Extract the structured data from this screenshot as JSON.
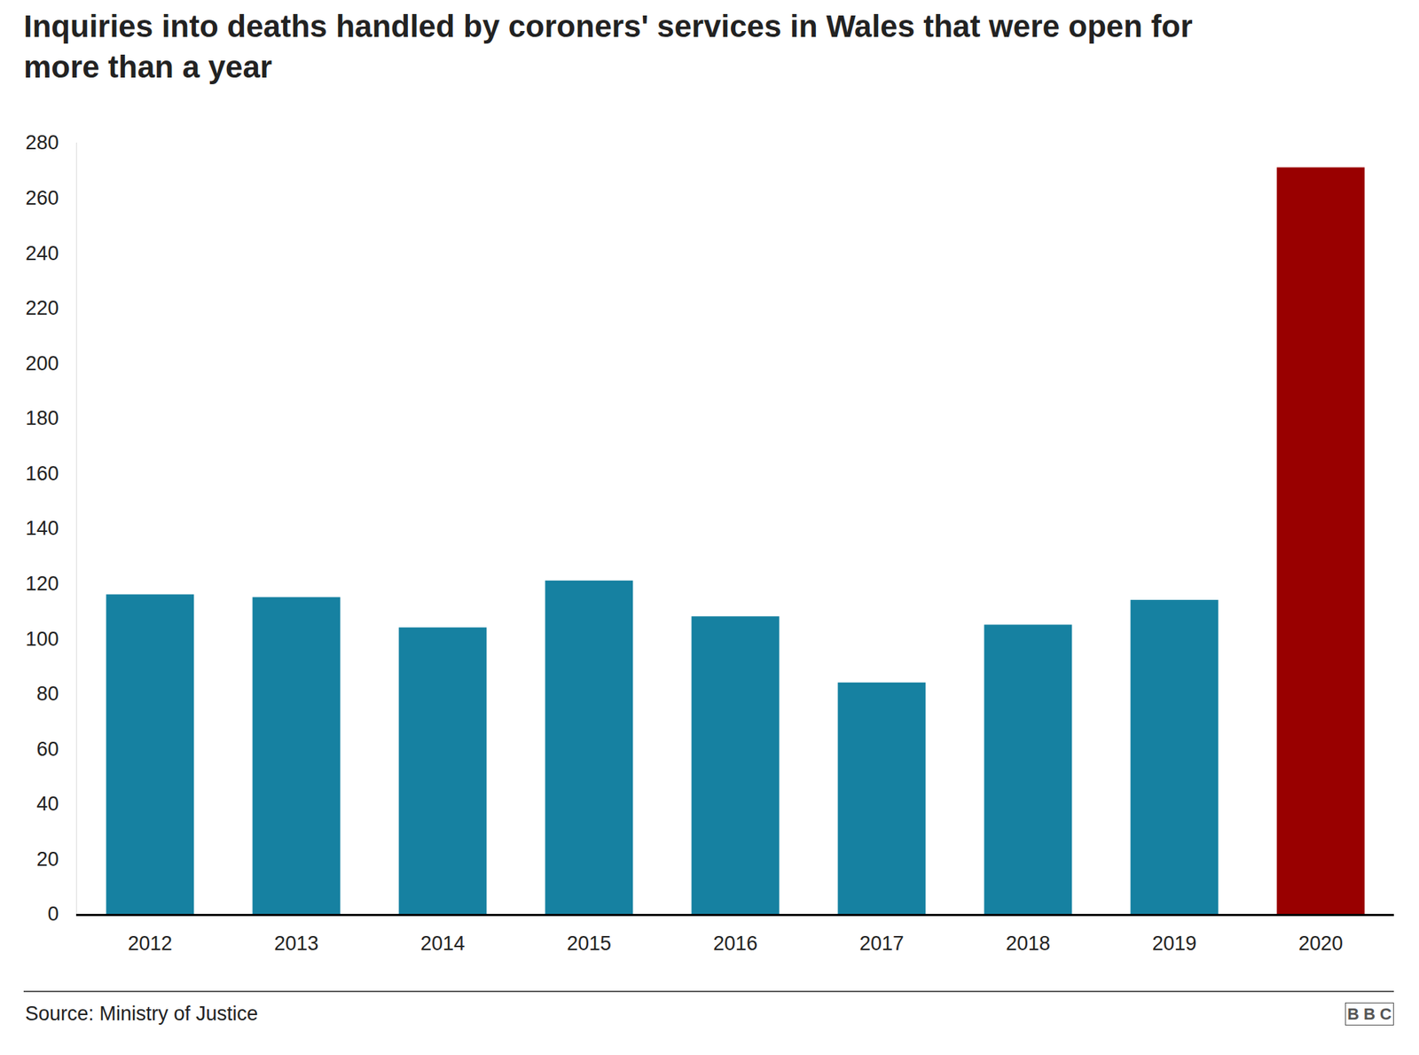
{
  "chart_data": {
    "type": "bar",
    "title": "Inquiries into deaths handled by coroners' services in Wales that were open for more than a year",
    "categories": [
      "2012",
      "2013",
      "2014",
      "2015",
      "2016",
      "2017",
      "2018",
      "2019",
      "2020"
    ],
    "values": [
      116,
      115,
      104,
      121,
      108,
      84,
      105,
      114,
      271
    ],
    "colors": [
      "#1681a1",
      "#1681a1",
      "#1681a1",
      "#1681a1",
      "#1681a1",
      "#1681a1",
      "#1681a1",
      "#1681a1",
      "#990000"
    ],
    "ylim": [
      0,
      280
    ],
    "yticks": [
      0,
      20,
      40,
      60,
      80,
      100,
      120,
      140,
      160,
      180,
      200,
      220,
      240,
      260,
      280
    ],
    "grid": false,
    "source": "Source: Ministry of Justice",
    "credit": "BBC"
  }
}
